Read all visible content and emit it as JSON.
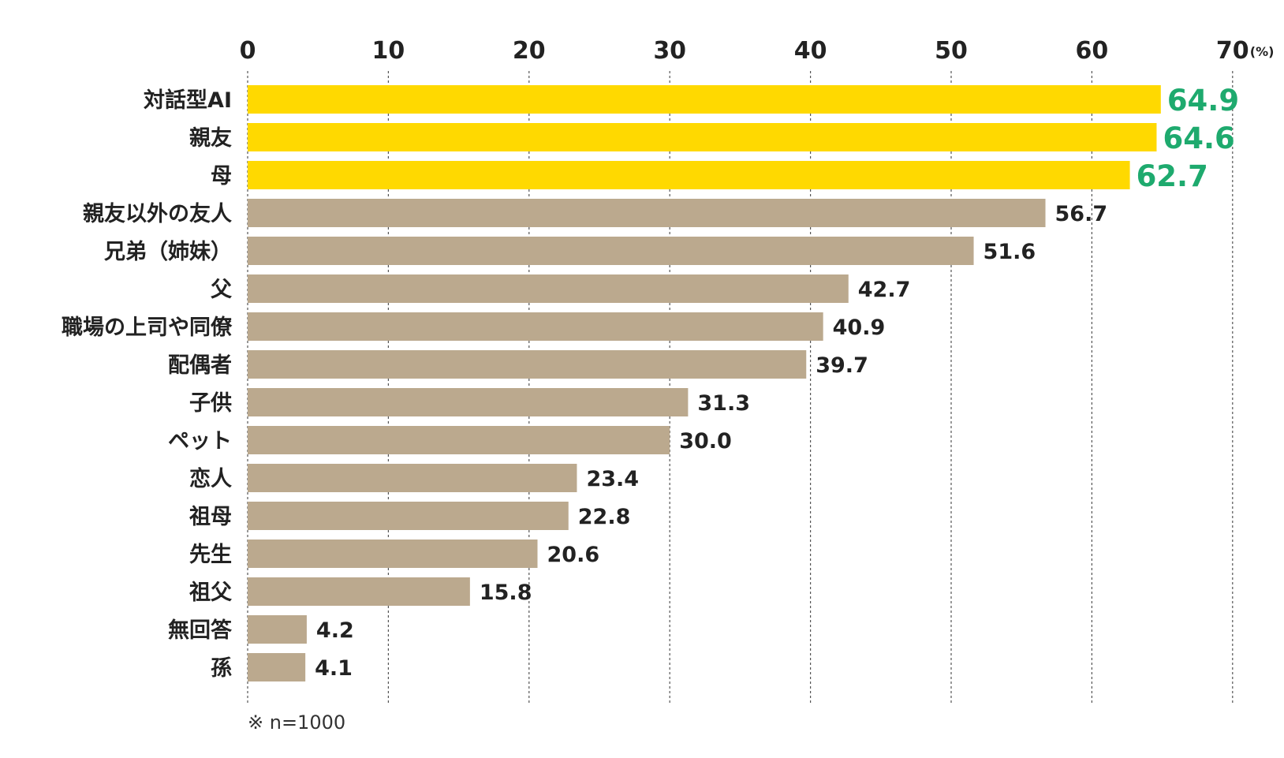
{
  "chart_data": {
    "type": "bar",
    "orientation": "horizontal",
    "categories": [
      "対話型AI",
      "親友",
      "母",
      "親友以外の友人",
      "兄弟（姉妹）",
      "父",
      "職場の上司や同僚",
      "配偶者",
      "子供",
      "ペット",
      "恋人",
      "祖母",
      "先生",
      "祖父",
      "無回答",
      "孫"
    ],
    "values": [
      64.9,
      64.6,
      62.7,
      56.7,
      51.6,
      42.7,
      40.9,
      39.7,
      31.3,
      30.0,
      23.4,
      22.8,
      20.6,
      15.8,
      4.2,
      4.1
    ],
    "value_labels": [
      "64.9",
      "64.6",
      "62.7",
      "56.7",
      "51.6",
      "42.7",
      "40.9",
      "39.7",
      "31.3",
      "30.0",
      "23.4",
      "22.8",
      "20.6",
      "15.8",
      "4.2",
      "4.1"
    ],
    "highlighted": [
      true,
      true,
      true,
      false,
      false,
      false,
      false,
      false,
      false,
      false,
      false,
      false,
      false,
      false,
      false,
      false
    ],
    "xlim": [
      0,
      70
    ],
    "xticks": [
      "0",
      "10",
      "20",
      "30",
      "40",
      "50",
      "60",
      "70"
    ],
    "unit_label": "(%)",
    "grid": "vertical-dashed",
    "axis_position": "top",
    "note": "※ n=1000",
    "colors": {
      "highlight_bar": "#FFD900",
      "highlight_text": "#1EAA6E",
      "bar": "#BBA98E",
      "grid": "#555555",
      "text": "#222222"
    }
  }
}
